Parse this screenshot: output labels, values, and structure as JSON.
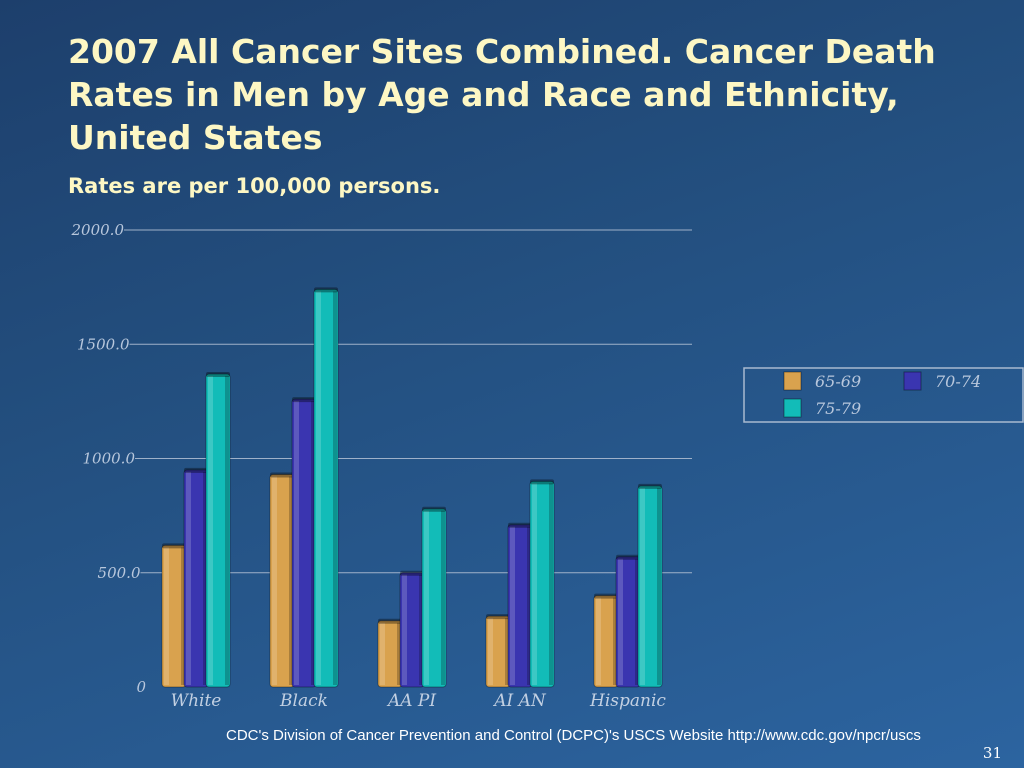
{
  "slide": {
    "title": "2007 All Cancer Sites Combined. Cancer Death Rates in Men by Age and Race and Ethnicity, United States",
    "subtitle": "Rates are per 100,000 persons.",
    "source": "CDC's Division of Cancer Prevention and Control (DCPC)'s USCS Website http://www.cdc.gov/npcr/uscs",
    "page_number": "31"
  },
  "colors": {
    "series": [
      "#d9a24e",
      "#3a35b0",
      "#12bcb8"
    ],
    "gridline": "#9fb1c9",
    "title": "#fdf7c4"
  },
  "chart_data": {
    "type": "bar",
    "categories": [
      "White",
      "Black",
      "AA PI",
      "AI AN",
      "Hispanic"
    ],
    "series": [
      {
        "name": "65-69",
        "values": [
          620,
          930,
          290,
          310,
          400
        ]
      },
      {
        "name": "70-74",
        "values": [
          950,
          1260,
          500,
          710,
          570
        ]
      },
      {
        "name": "75-79",
        "values": [
          1370,
          1740,
          780,
          900,
          880
        ]
      }
    ],
    "y_ticks": [
      "0",
      "500.0",
      "1000.0",
      "1500.0",
      "2000.0"
    ],
    "ylim": [
      0,
      2000
    ],
    "grid": true,
    "legend_position": "right",
    "title": "2007 All Cancer Sites Combined. Cancer Death Rates in Men by Age and Race and Ethnicity, United States",
    "xlabel": "",
    "ylabel": ""
  }
}
